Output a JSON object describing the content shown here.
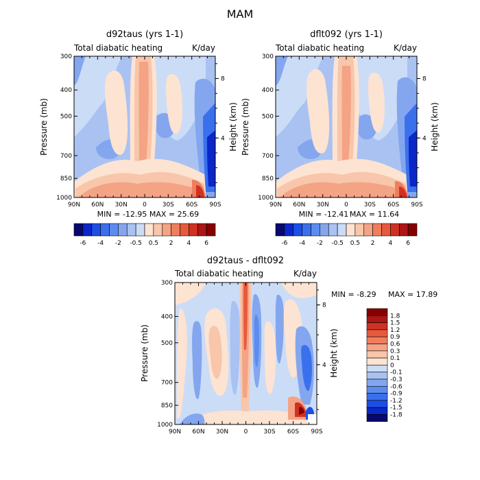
{
  "figure_title": "MAM",
  "colors": {
    "neg_scale": [
      "#08086e",
      "#0b27c8",
      "#1d4fe6",
      "#3b70ec",
      "#5d8cef",
      "#84a6ef",
      "#a9c2f2",
      "#cbdcf7"
    ],
    "pos_scale": [
      "#fde3d2",
      "#f8c6aa",
      "#f4a384",
      "#ef7e5e",
      "#e7593d",
      "#cf3223",
      "#ae1515",
      "#860000"
    ]
  },
  "chart_data": [
    {
      "type": "heatmap",
      "panel_id": "top-left",
      "title": "d92taus (yrs 1-1)",
      "left_label": "Total diabatic heating",
      "right_label": "K/day",
      "ylabel": "Pressure (mb)",
      "ylabel2": "Height (km)",
      "xticks": [
        "90N",
        "60N",
        "30N",
        "0",
        "30S",
        "60S",
        "90S"
      ],
      "yticks": [
        "300",
        "400",
        "500",
        "700",
        "850",
        "1000"
      ],
      "ytick_values": [
        300,
        400,
        500,
        700,
        850,
        1000
      ],
      "height_ticks": [
        "8",
        "4"
      ],
      "height_tick_values": [
        8,
        4
      ],
      "xlim": [
        90,
        -90
      ],
      "ylim_pressure": [
        300,
        1000
      ],
      "min_label": "MIN = -12.95",
      "max_label": "MAX = 25.69",
      "colorbar_ticks": [
        "-6",
        "-4",
        "-2",
        "-0.5",
        "0.5",
        "2",
        "4",
        "6"
      ],
      "levels": [
        -6,
        -5,
        -4,
        -3,
        -2,
        -1,
        -0.5,
        0,
        0.5,
        1,
        2,
        3,
        4,
        5,
        6
      ]
    },
    {
      "type": "heatmap",
      "panel_id": "top-right",
      "title": "dflt092 (yrs 1-1)",
      "left_label": "Total diabatic heating",
      "right_label": "K/day",
      "ylabel": "Pressure (mb)",
      "ylabel2": "Height (km)",
      "xticks": [
        "90N",
        "60N",
        "30N",
        "0",
        "30S",
        "60S",
        "90S"
      ],
      "yticks": [
        "300",
        "400",
        "500",
        "700",
        "850",
        "1000"
      ],
      "ytick_values": [
        300,
        400,
        500,
        700,
        850,
        1000
      ],
      "height_ticks": [
        "8",
        "4"
      ],
      "height_tick_values": [
        8,
        4
      ],
      "xlim": [
        90,
        -90
      ],
      "ylim_pressure": [
        300,
        1000
      ],
      "min_label": "MIN = -12.41",
      "max_label": "MAX = 11.64",
      "colorbar_ticks": [
        "-6",
        "-4",
        "-2",
        "-0.5",
        "0.5",
        "2",
        "4",
        "6"
      ],
      "levels": [
        -6,
        -5,
        -4,
        -3,
        -2,
        -1,
        -0.5,
        0,
        0.5,
        1,
        2,
        3,
        4,
        5,
        6
      ]
    },
    {
      "type": "heatmap",
      "panel_id": "bottom",
      "title": "d92taus - dflt092",
      "left_label": "Total diabatic heating",
      "right_label": "K/day",
      "ylabel": "Pressure (mb)",
      "ylabel2": "Height (km)",
      "xticks": [
        "90N",
        "60N",
        "30N",
        "0",
        "30S",
        "60S",
        "90S"
      ],
      "yticks": [
        "300",
        "400",
        "500",
        "700",
        "850",
        "1000"
      ],
      "ytick_values": [
        300,
        400,
        500,
        700,
        850,
        1000
      ],
      "height_ticks": [
        "8",
        "4"
      ],
      "height_tick_values": [
        8,
        4
      ],
      "xlim": [
        90,
        -90
      ],
      "ylim_pressure": [
        300,
        1000
      ],
      "min_label": "MIN = -8.29",
      "max_label": "MAX = 17.89",
      "colorbar_ticks": [
        "1.8",
        "1.5",
        "1.2",
        "0.9",
        "0.6",
        "0.3",
        "0.1",
        "0",
        "-0.1",
        "-0.3",
        "-0.6",
        "-0.9",
        "-1.2",
        "-1.5",
        "-1.8"
      ],
      "levels": [
        1.8,
        1.5,
        1.2,
        0.9,
        0.6,
        0.3,
        0.1,
        0,
        -0.1,
        -0.3,
        -0.6,
        -0.9,
        -1.2,
        -1.5,
        -1.8
      ]
    }
  ]
}
